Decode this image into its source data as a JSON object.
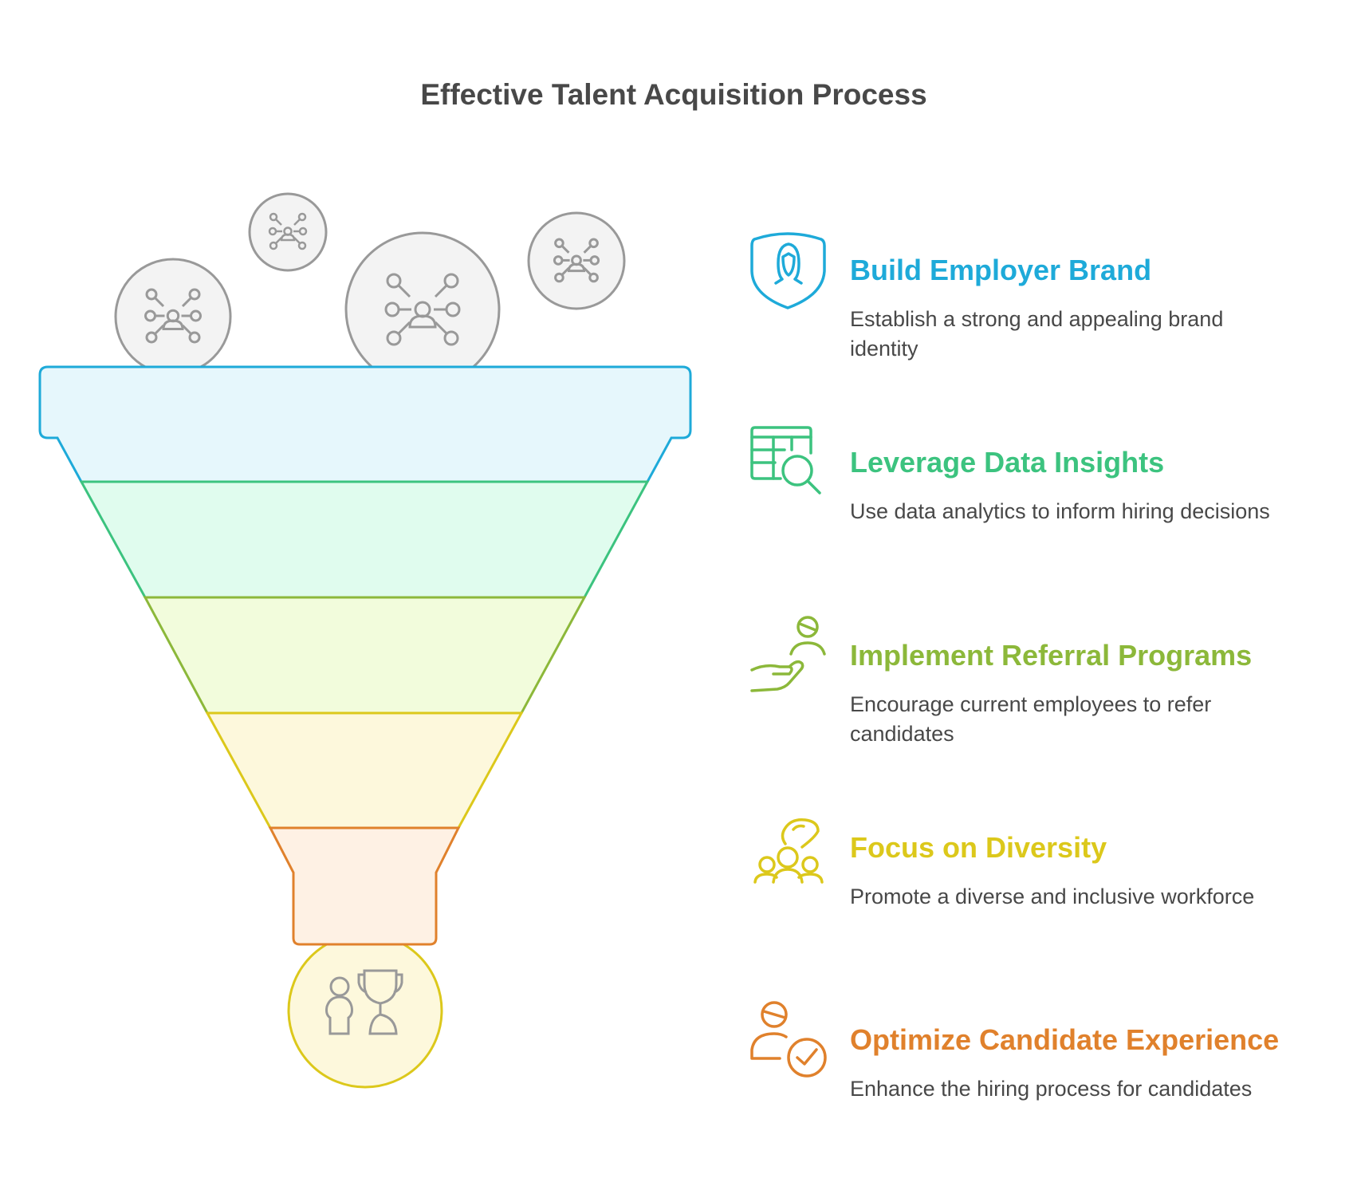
{
  "title": "Effective Talent Acquisition Process",
  "steps": [
    {
      "heading": "Build Employer Brand",
      "description": "Establish a strong and appealing brand identity",
      "icon": "shield-person-icon",
      "color": "#1eaad9",
      "fill": "#e6f7fc"
    },
    {
      "heading": "Leverage Data Insights",
      "description": "Use data analytics to inform hiring decisions",
      "icon": "table-search-icon",
      "color": "#3cc37f",
      "fill": "#e0fcee"
    },
    {
      "heading": "Implement Referral Programs",
      "description": "Encourage current employees to refer candidates",
      "icon": "hand-person-icon",
      "color": "#8cb83a",
      "fill": "#f2fcdc"
    },
    {
      "heading": "Focus on Diversity",
      "description": "Promote a diverse and inclusive workforce",
      "icon": "diverse-group-icon",
      "color": "#dcc81b",
      "fill": "#fdf8dc"
    },
    {
      "heading": "Optimize Candidate Experience",
      "description": "Enhance the hiring process for candidates",
      "icon": "person-check-icon",
      "color": "#e0812c",
      "fill": "#fef1e4"
    }
  ],
  "inputs_icon": "network-person-icon",
  "output_icon": "person-trophy-icon"
}
